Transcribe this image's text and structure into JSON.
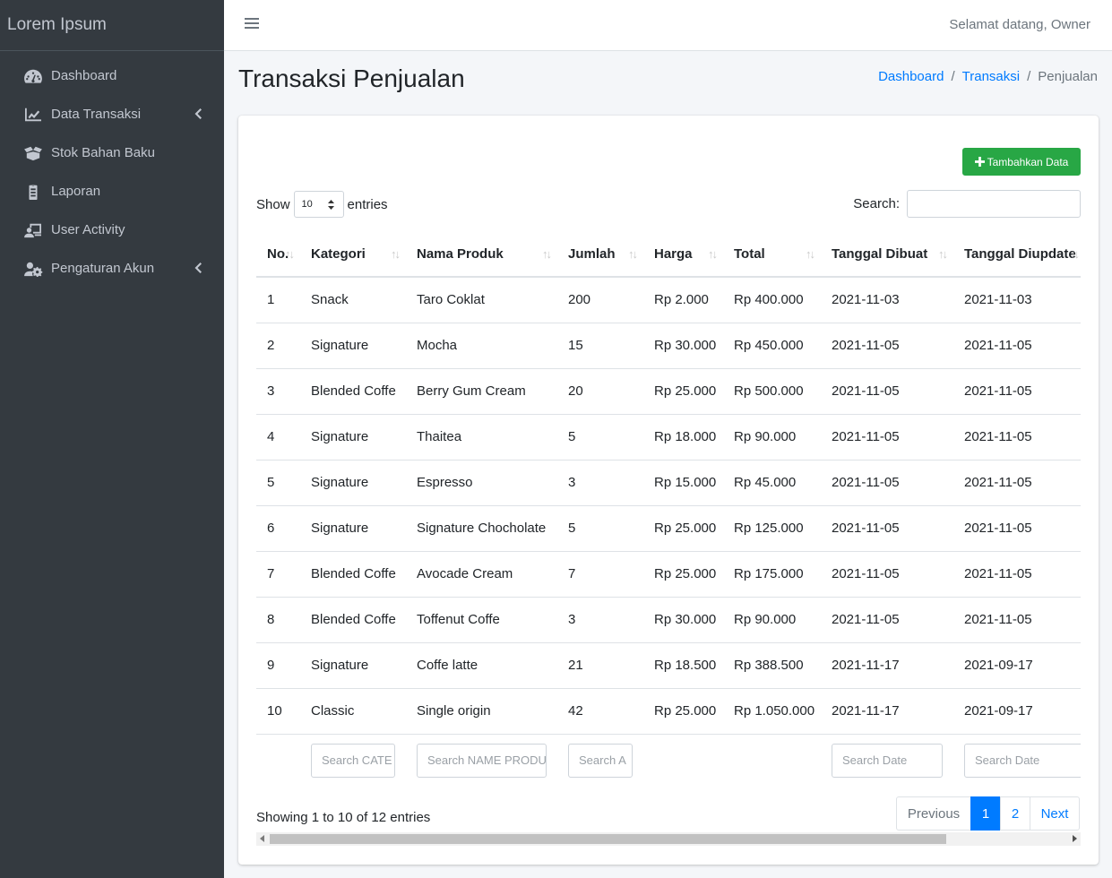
{
  "brand": "Lorem Ipsum",
  "sidebar": {
    "items": [
      {
        "label": "Dashboard",
        "icon": "tachometer-icon",
        "has_arrow": false
      },
      {
        "label": "Data Transaksi",
        "icon": "chart-line-icon",
        "has_arrow": true
      },
      {
        "label": "Stok Bahan Baku",
        "icon": "box-open-icon",
        "has_arrow": false
      },
      {
        "label": "Laporan",
        "icon": "clipboard-list-icon",
        "has_arrow": false
      },
      {
        "label": "User Activity",
        "icon": "user-activity-icon",
        "has_arrow": false
      },
      {
        "label": "Pengaturan Akun",
        "icon": "user-cog-icon",
        "has_arrow": true
      }
    ]
  },
  "topbar": {
    "welcome": "Selamat datang, Owner"
  },
  "header": {
    "title": "Transaksi Penjualan",
    "breadcrumb": [
      "Dashboard",
      "Transaksi",
      "Penjualan"
    ]
  },
  "toolbar": {
    "add_label": "Tambahkan Data"
  },
  "length_menu": {
    "show_label": "Show",
    "value": "10",
    "entries_label": "entries"
  },
  "search": {
    "label": "Search:",
    "value": ""
  },
  "table": {
    "columns": [
      "No.",
      "Kategori",
      "Nama Produk",
      "Jumlah",
      "Harga",
      "Total",
      "Tanggal Dibuat",
      "Tanggal Diupdate"
    ],
    "rows": [
      [
        "1",
        "Snack",
        "Taro Coklat",
        "200",
        "Rp 2.000",
        "Rp 400.000",
        "2021-11-03",
        "2021-11-03"
      ],
      [
        "2",
        "Signature",
        "Mocha",
        "15",
        "Rp 30.000",
        "Rp 450.000",
        "2021-11-05",
        "2021-11-05"
      ],
      [
        "3",
        "Blended Coffe",
        "Berry Gum Cream",
        "20",
        "Rp 25.000",
        "Rp 500.000",
        "2021-11-05",
        "2021-11-05"
      ],
      [
        "4",
        "Signature",
        "Thaitea",
        "5",
        "Rp 18.000",
        "Rp 90.000",
        "2021-11-05",
        "2021-11-05"
      ],
      [
        "5",
        "Signature",
        "Espresso",
        "3",
        "Rp 15.000",
        "Rp 45.000",
        "2021-11-05",
        "2021-11-05"
      ],
      [
        "6",
        "Signature",
        "Signature Chocholate",
        "5",
        "Rp 25.000",
        "Rp 125.000",
        "2021-11-05",
        "2021-11-05"
      ],
      [
        "7",
        "Blended Coffe",
        "Avocade Cream",
        "7",
        "Rp 25.000",
        "Rp 175.000",
        "2021-11-05",
        "2021-11-05"
      ],
      [
        "8",
        "Blended Coffe",
        "Toffenut Coffe",
        "3",
        "Rp 30.000",
        "Rp 90.000",
        "2021-11-05",
        "2021-11-05"
      ],
      [
        "9",
        "Signature",
        "Coffe latte",
        "21",
        "Rp 18.500",
        "Rp 388.500",
        "2021-11-17",
        "2021-09-17"
      ],
      [
        "10",
        "Classic",
        "Single origin",
        "42",
        "Rp 25.000",
        "Rp 1.050.000",
        "2021-11-17",
        "2021-09-17"
      ]
    ],
    "filters": [
      "",
      "Search CATE",
      "Search NAME PRODU",
      "Search A",
      "",
      "",
      "Search Date",
      "Search Date"
    ]
  },
  "footer": {
    "info": "Showing 1 to 10 of 12 entries",
    "pagination": {
      "previous": "Previous",
      "pages": [
        "1",
        "2"
      ],
      "active": "1",
      "next": "Next"
    }
  },
  "colors": {
    "sidebar_bg": "#343a40",
    "primary": "#007bff",
    "success": "#28a745"
  }
}
